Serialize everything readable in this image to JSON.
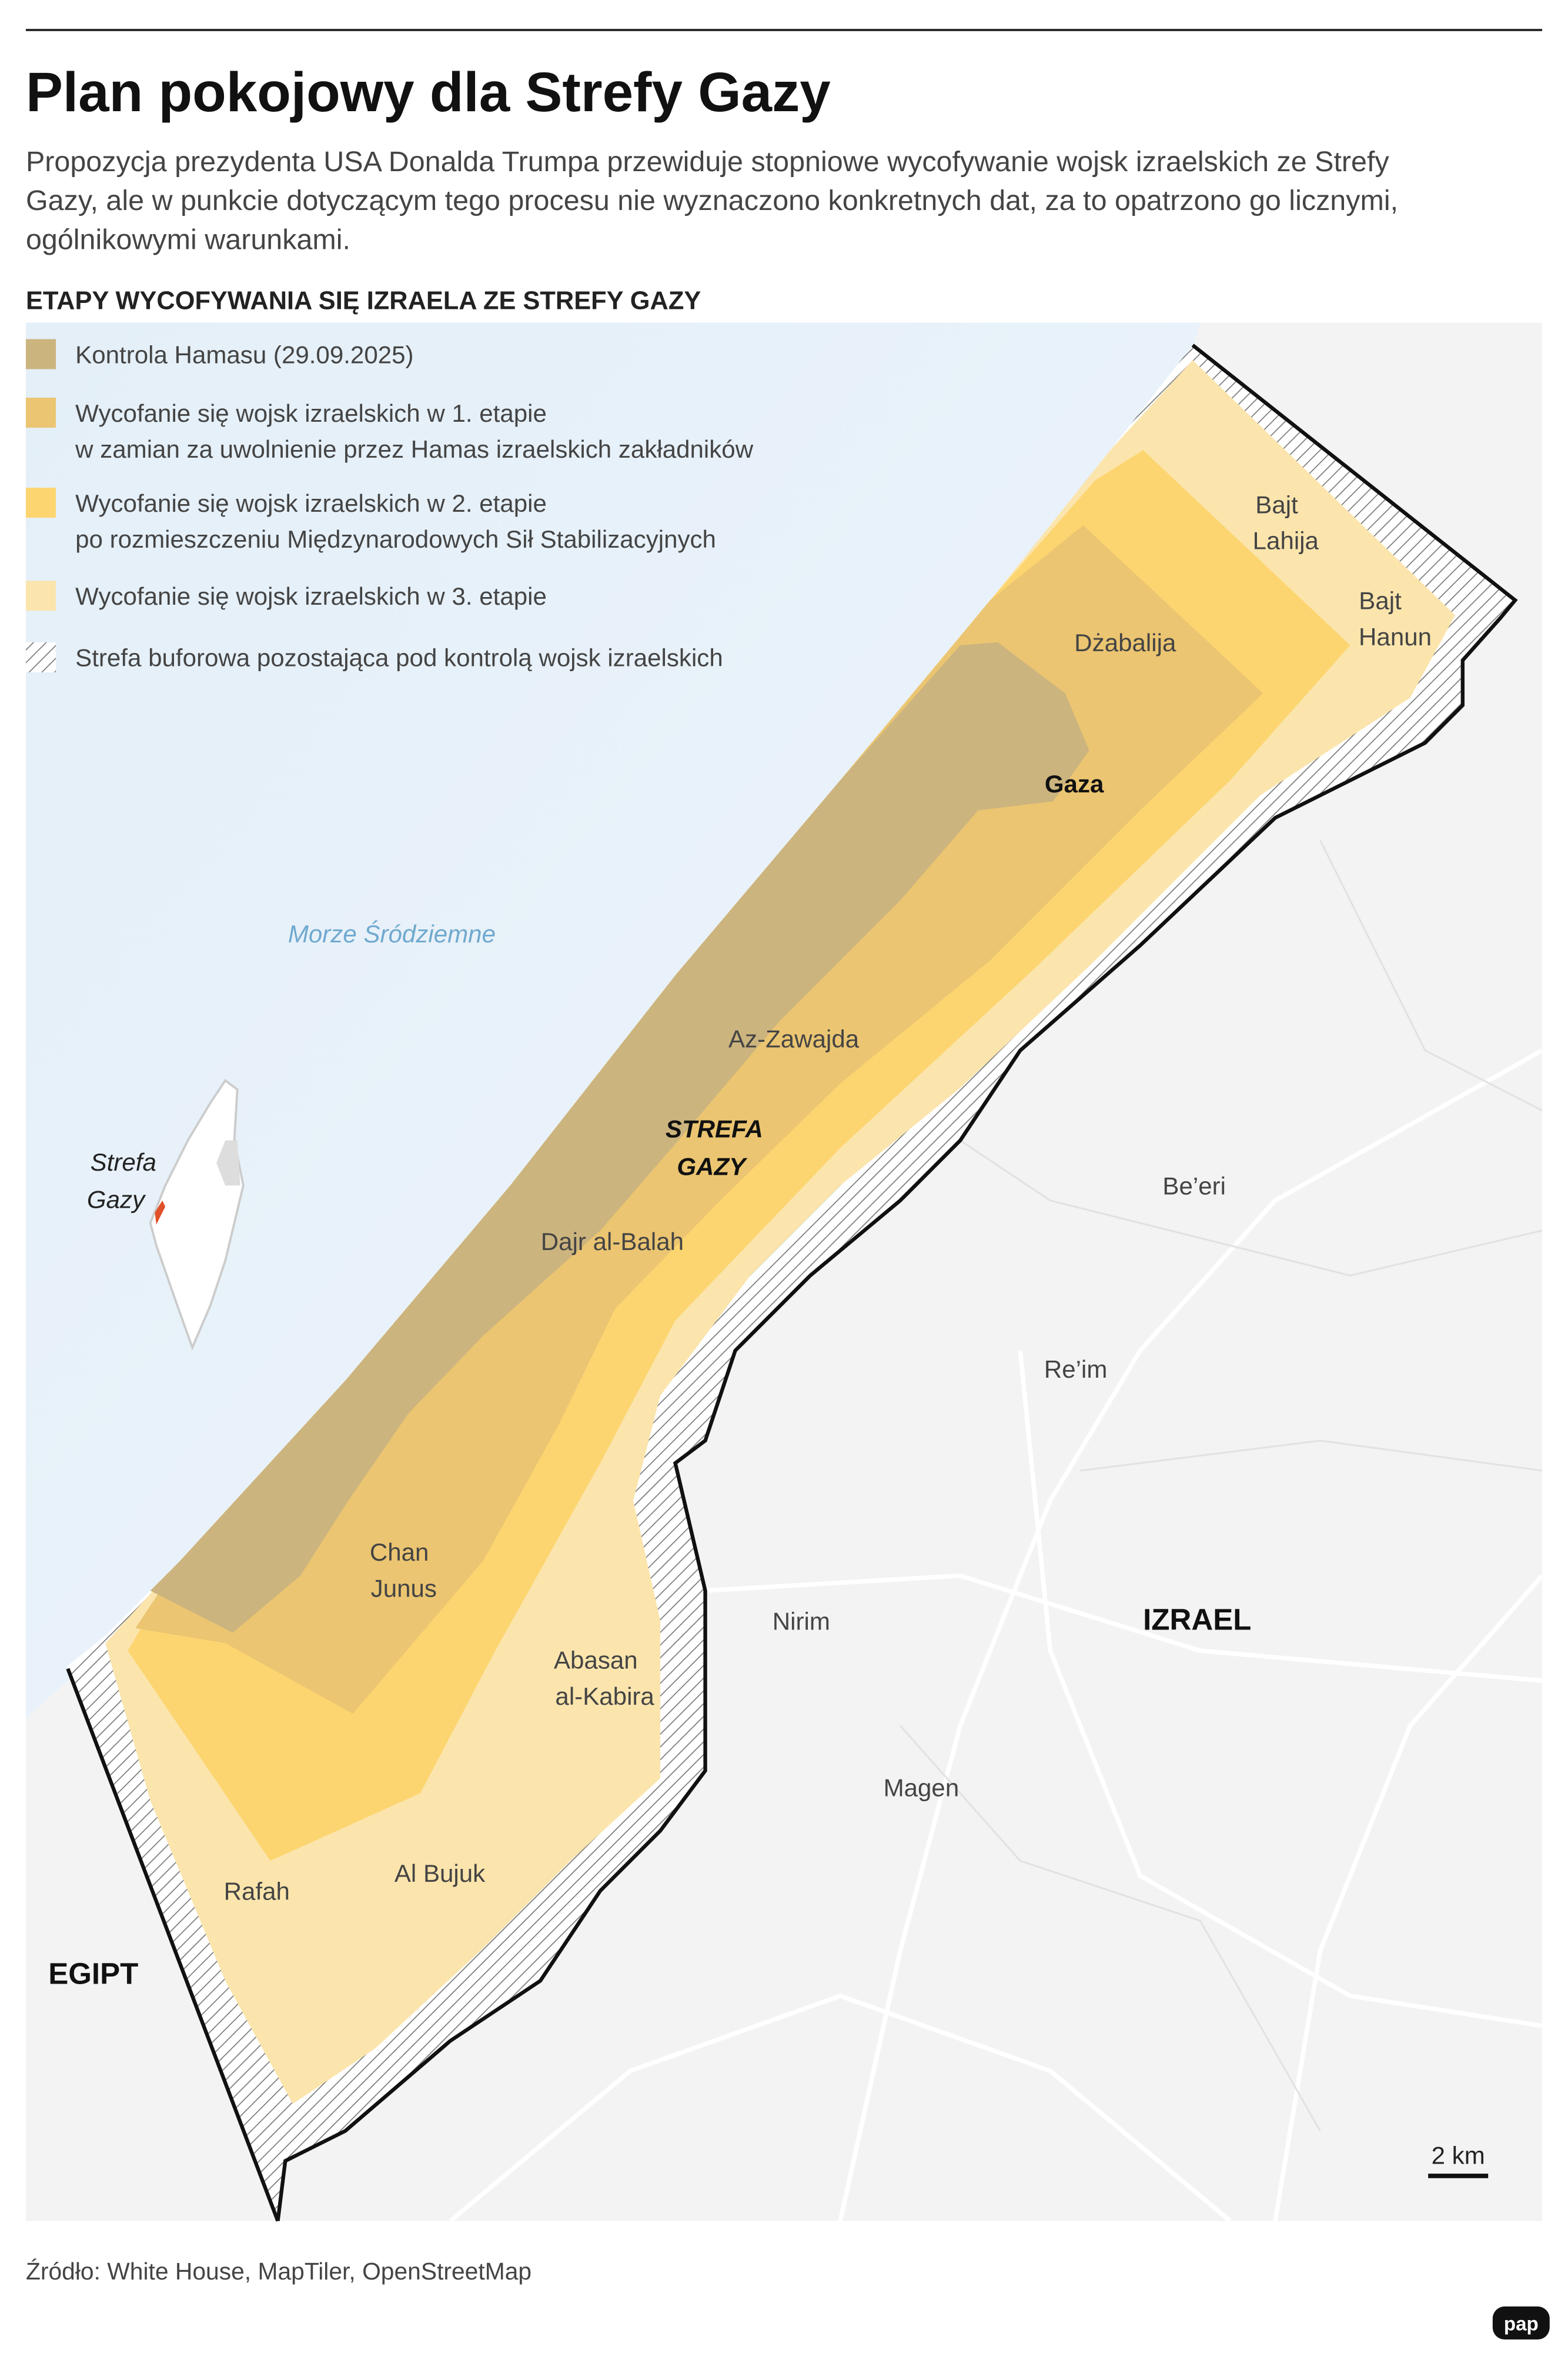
{
  "header": {
    "title": "Plan pokojowy dla Strefy Gazy",
    "subtitle": [
      "Propozycja prezydenta USA Donalda Trumpa przewiduje stopniowe wycofywanie wojsk izraelskich ze Strefy",
      "Gazy, ale w punkcie dotyczącym tego procesu nie wyznaczono konkretnych dat, za to opatrzono go licznymi,",
      "ogólnikowymi warunkami."
    ]
  },
  "legend": {
    "title": "ETAPY WYCOFYWANIA SIĘ IZRAELA ZE STREFY GAZY",
    "items": [
      [
        "Kontrola Hamasu (29.09.2025)"
      ],
      [
        "Wycofanie się wojsk izraelskich w 1. etapie",
        "w zamian za uwolnienie przez Hamas izraelskich zakładników"
      ],
      [
        "Wycofanie się wojsk izraelskich w 2. etapie",
        "po rozmieszczeniu Międzynarodowych Sił Stabilizacyjnych"
      ],
      [
        "Wycofanie się wojsk izraelskich w 3. etapie"
      ],
      [
        "Strefa buforowa pozostająca pod kontrolą wojsk izraelskich"
      ]
    ]
  },
  "map": {
    "places": [
      [
        "Bajt",
        "Lahija"
      ],
      [
        "Bajt",
        "Hanun"
      ],
      [
        "Dżabalija"
      ],
      [
        "Gaza"
      ],
      [
        "Morze Śródziemne"
      ],
      [
        "Az-Zawajda"
      ],
      [
        "STREFA",
        "GAZY"
      ],
      [
        "Dajr al-Balah"
      ],
      [
        "Be’eri"
      ],
      [
        "Re’im"
      ],
      [
        "Chan",
        "Junus"
      ],
      [
        "Nirim"
      ],
      [
        "IZRAEL"
      ],
      [
        "Abasan",
        "al-Kabira"
      ],
      [
        "Magen"
      ],
      [
        "Rafah"
      ],
      [
        "Al Bujuk"
      ],
      [
        "EGIPT"
      ]
    ],
    "inset_label": [
      "Strefa",
      "Gazy"
    ],
    "scale": "2 km"
  },
  "footer": {
    "source": "Źródło: White House, MapTiler, OpenStreetMap",
    "logo": "pap"
  }
}
